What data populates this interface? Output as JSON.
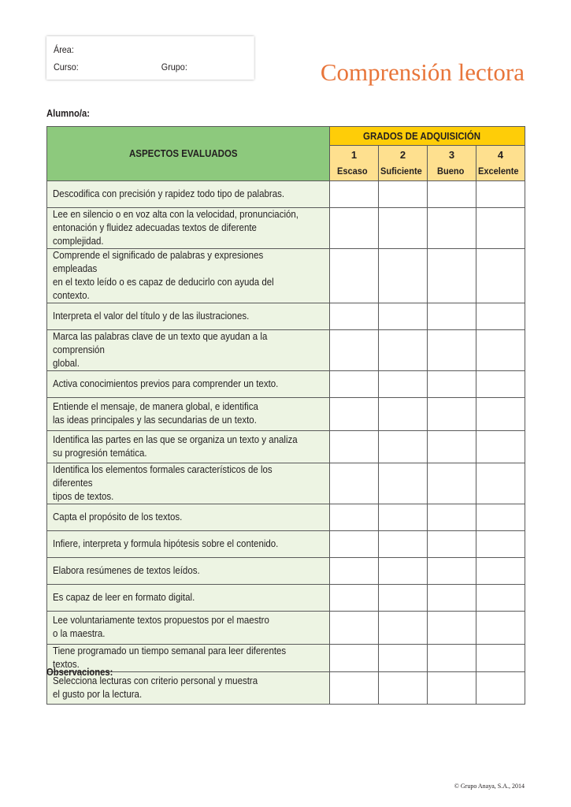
{
  "header": {
    "area_label": "Área:",
    "curso_label": "Curso:",
    "grupo_label": "Grupo:",
    "title": "Comprensión lectora"
  },
  "alumno_label": "Alumno/a:",
  "table": {
    "aspects_header": "ASPECTOS EVALUADOS",
    "grades_header": "GRADOS DE ADQUISICIÓN",
    "levels": [
      {
        "num": "1",
        "label": "Escaso"
      },
      {
        "num": "2",
        "label": "Suficiente"
      },
      {
        "num": "3",
        "label": "Bueno"
      },
      {
        "num": "4",
        "label": "Excelente"
      }
    ],
    "rows": [
      "Descodifica con precisión y rapidez todo tipo de palabras.",
      "Lee en silencio o en voz alta con la velocidad, pronunciación,\nentonación y fluidez adecuadas textos de diferente complejidad.",
      "Comprende el significado de palabras y expresiones empleadas\nen el texto leído o es capaz de deducirlo con ayuda del contexto.",
      "Interpreta el valor del título y de las ilustraciones.",
      "Marca las palabras clave de un texto que ayudan a la comprensión\nglobal.",
      "Activa conocimientos previos para comprender un texto.",
      "Entiende el mensaje, de manera global, e identifica\nlas ideas principales y las secundarias de un texto.",
      "Identifica las partes en las que se organiza un texto y analiza\nsu progresión temática.",
      "Identifica los elementos formales característicos de los diferentes\ntipos de textos.",
      "Capta el propósito de los textos.",
      "Infiere, interpreta y formula hipótesis sobre el contenido.",
      "Elabora resúmenes de textos leídos.",
      "Es capaz de leer en formato digital.",
      "Lee voluntariamente textos propuestos por el maestro\no la maestra.",
      "Tiene programado un tiempo semanal para leer diferentes textos.",
      "Selecciona lecturas con criterio personal y muestra\nel gusto por la lectura."
    ]
  },
  "observaciones_label": "Observaciones:",
  "copyright": "© Grupo Anaya, S.A., 2014"
}
